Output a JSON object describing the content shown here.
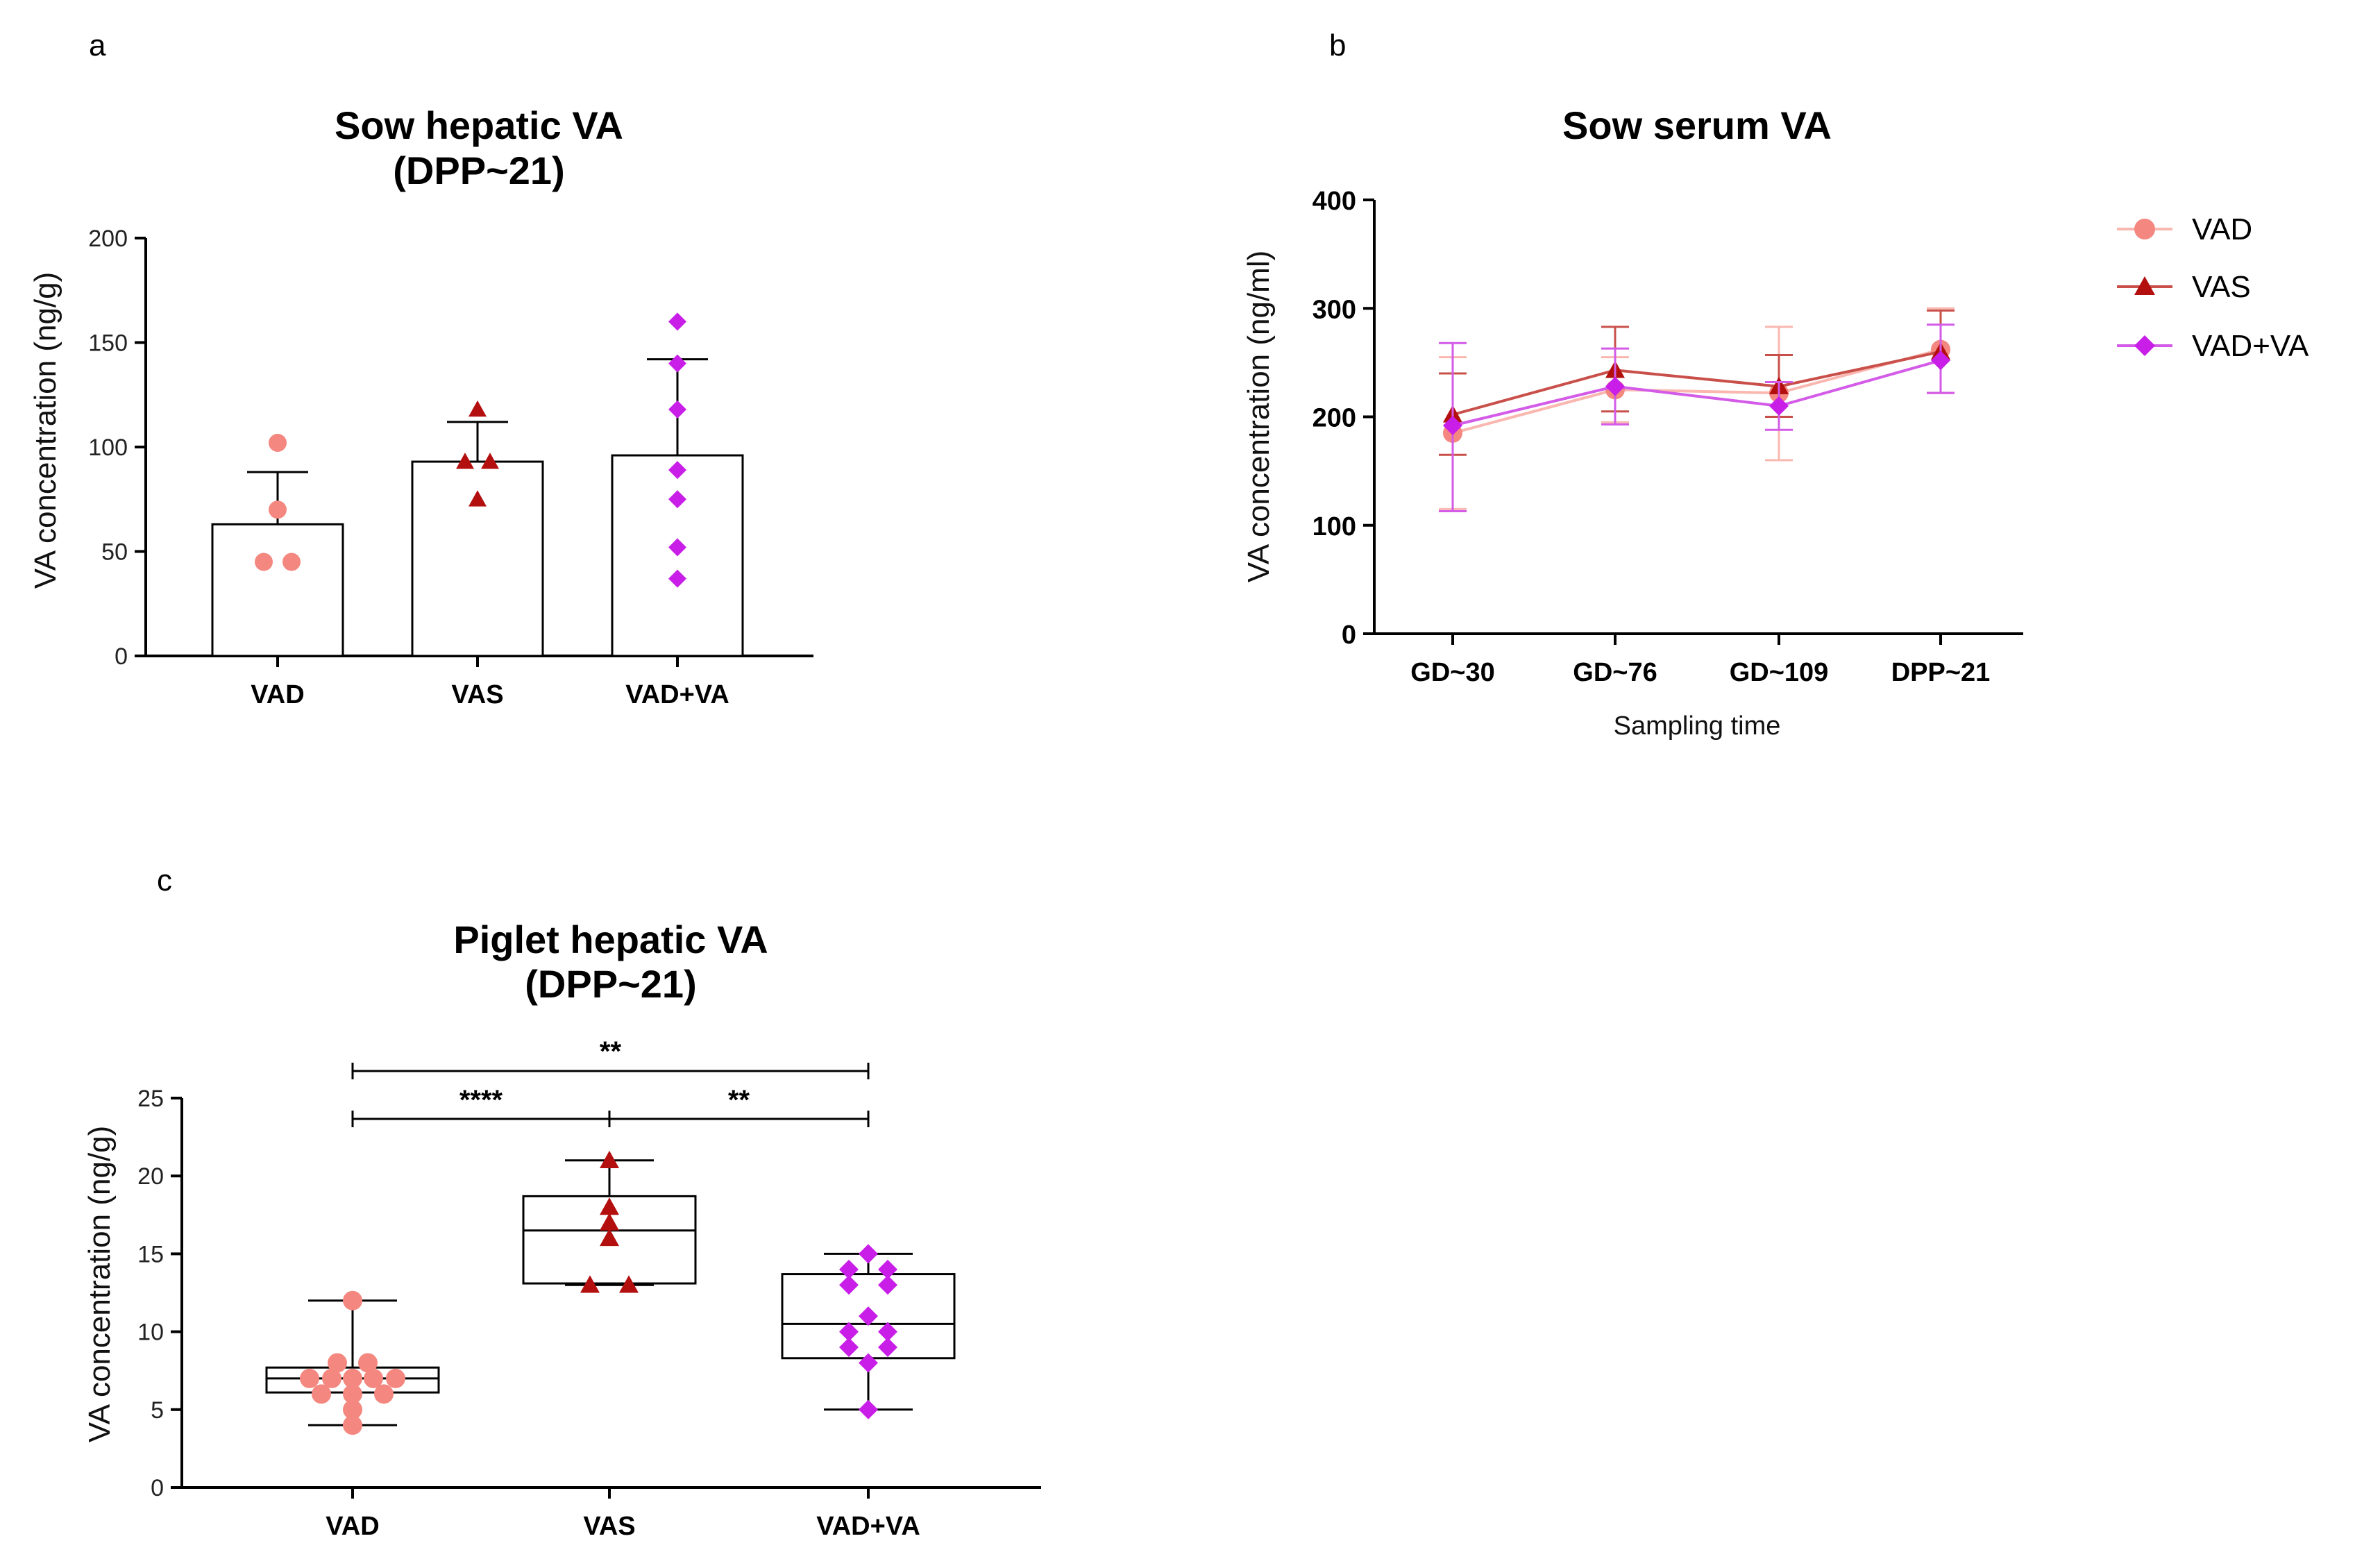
{
  "colors": {
    "VAD": "#f4877f",
    "VAS": "#b30f0f",
    "VADVA": "#c81ee8",
    "VAD_line": "#f9b7b0",
    "VAS_line": "#c9504a",
    "VADVA_line": "#d35be8"
  },
  "chart_data": [
    {
      "panel": "a",
      "type": "bar",
      "title": "Sow hepatic VA",
      "subtitle": "(DPP~21)",
      "ylabel": "VA concentration (ng/g)",
      "xlabel": "",
      "ylim": [
        0,
        200
      ],
      "yticks": [
        0,
        50,
        100,
        150,
        200
      ],
      "categories": [
        "VAD",
        "VAS",
        "VAD+VA"
      ],
      "series": [
        {
          "name": "VAD",
          "mean": 63,
          "sd_upper": 88,
          "points": [
            102,
            70,
            45,
            45
          ]
        },
        {
          "name": "VAS",
          "mean": 93,
          "sd_upper": 112,
          "points": [
            118,
            93,
            93,
            75
          ]
        },
        {
          "name": "VAD+VA",
          "mean": 96,
          "sd_upper": 142,
          "points": [
            160,
            140,
            118,
            89,
            75,
            52,
            37
          ]
        }
      ]
    },
    {
      "panel": "b",
      "type": "line",
      "title": "Sow serum VA",
      "ylabel": "VA concentration (ng/ml)",
      "xlabel": "Sampling time",
      "ylim": [
        0,
        400
      ],
      "yticks": [
        0,
        100,
        200,
        300,
        400
      ],
      "categories": [
        "GD~30",
        "GD~76",
        "GD~109",
        "DPP~21"
      ],
      "legend": [
        "VAD",
        "VAS",
        "VAD+VA"
      ],
      "legend_position": "right",
      "series": [
        {
          "name": "VAD",
          "values": [
            185,
            225,
            222,
            262
          ],
          "err_low": [
            115,
            195,
            160,
            222
          ],
          "err_high": [
            255,
            255,
            283,
            300
          ]
        },
        {
          "name": "VAS",
          "values": [
            202,
            243,
            228,
            260
          ],
          "err_low": [
            165,
            205,
            200,
            222
          ],
          "err_high": [
            240,
            283,
            257,
            298
          ]
        },
        {
          "name": "VAD+VA",
          "values": [
            192,
            228,
            210,
            252
          ],
          "err_low": [
            113,
            193,
            188,
            222
          ],
          "err_high": [
            268,
            263,
            232,
            285
          ]
        }
      ]
    },
    {
      "panel": "c",
      "type": "box",
      "title": "Piglet hepatic VA",
      "subtitle": "(DPP~21)",
      "ylabel": "VA concentration (ng/g)",
      "xlabel": "",
      "ylim": [
        0,
        25
      ],
      "yticks": [
        0,
        5,
        10,
        15,
        20,
        25
      ],
      "categories": [
        "VAD",
        "VAS",
        "VAD+VA"
      ],
      "boxes": [
        {
          "name": "VAD",
          "min": 4,
          "q1": 6.1,
          "median": 7,
          "q3": 7.7,
          "max": 12,
          "points": [
            [
              0,
              12
            ],
            [
              -22,
              8
            ],
            [
              22,
              8
            ],
            [
              -62,
              7
            ],
            [
              -30,
              7
            ],
            [
              0,
              7
            ],
            [
              30,
              7
            ],
            [
              62,
              7
            ],
            [
              -45,
              6
            ],
            [
              0,
              6
            ],
            [
              45,
              6
            ],
            [
              0,
              5
            ],
            [
              0,
              4
            ]
          ]
        },
        {
          "name": "VAS",
          "min": 13,
          "q1": 13.1,
          "median": 16.5,
          "q3": 18.7,
          "max": 21,
          "points": [
            [
              0,
              21
            ],
            [
              0,
              18
            ],
            [
              0,
              17
            ],
            [
              0,
              16
            ],
            [
              -28,
              13
            ],
            [
              28,
              13
            ]
          ]
        },
        {
          "name": "VAD+VA",
          "min": 5,
          "q1": 8.3,
          "median": 10.5,
          "q3": 13.7,
          "max": 15,
          "points": [
            [
              0,
              15
            ],
            [
              -28,
              14
            ],
            [
              28,
              14
            ],
            [
              -28,
              13
            ],
            [
              28,
              13
            ],
            [
              0,
              11
            ],
            [
              -28,
              10
            ],
            [
              28,
              10
            ],
            [
              -28,
              9
            ],
            [
              28,
              9
            ],
            [
              0,
              8
            ],
            [
              0,
              5
            ]
          ]
        }
      ],
      "significance": [
        {
          "from": "VAD",
          "to": "VAD+VA",
          "label": "**"
        },
        {
          "from": "VAD",
          "to": "VAS",
          "label": "****"
        },
        {
          "from": "VAS",
          "to": "VAD+VA",
          "label": "**"
        }
      ]
    }
  ],
  "panels": {
    "a": "a",
    "b": "b",
    "c": "c"
  }
}
